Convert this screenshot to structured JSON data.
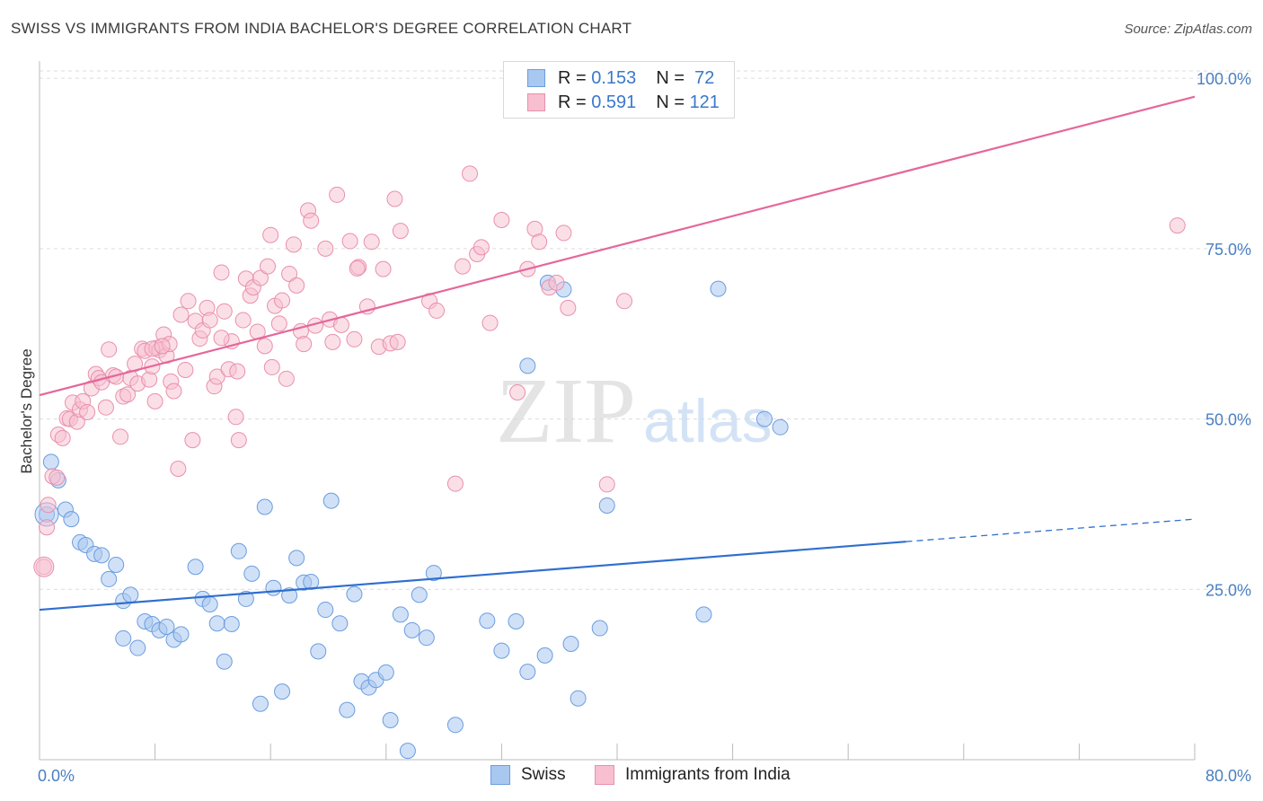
{
  "header": {
    "title": "SWISS VS IMMIGRANTS FROM INDIA BACHELOR'S DEGREE CORRELATION CHART",
    "source": "Source: ZipAtlas.com"
  },
  "watermark": {
    "part1": "ZIP",
    "part2": "atlas"
  },
  "legend": {
    "rows": [
      {
        "r_label": "R =",
        "r_value": "0.153",
        "n_label": "N =",
        "n_value": "72"
      },
      {
        "r_label": "R =",
        "r_value": "0.591",
        "n_label": "N =",
        "n_value": "121"
      }
    ]
  },
  "bottom_legend": {
    "swiss": "Swiss",
    "india": "Immigrants from India"
  },
  "colors": {
    "swiss_fill": "#a9c8f0",
    "swiss_stroke": "#6b9ddf",
    "swiss_line": "#2f6fcf",
    "india_fill": "#f7bfd0",
    "india_stroke": "#e98fae",
    "india_line": "#e5679a",
    "axis_label": "#4a7fc1",
    "grid": "#dcdcdc"
  },
  "chart_data": {
    "type": "scatter",
    "title": "SWISS VS IMMIGRANTS FROM INDIA BACHELOR'S DEGREE CORRELATION CHART",
    "xlabel": "",
    "ylabel": "Bachelor's Degree",
    "xlim": [
      0,
      80
    ],
    "ylim": [
      0,
      102
    ],
    "x_tick_labels": [
      "0.0%",
      "80.0%"
    ],
    "y_ticks": [
      25,
      50,
      75,
      100
    ],
    "y_tick_labels": [
      "25.0%",
      "50.0%",
      "75.0%",
      "100.0%"
    ],
    "grid": true,
    "legend_position": "top-center",
    "series": [
      {
        "name": "Swiss",
        "R": 0.153,
        "N": 72,
        "trend": {
          "x": [
            0,
            60
          ],
          "y": [
            22.0,
            32.0
          ],
          "dashed_extension": {
            "x": [
              60,
              80
            ],
            "y": [
              32.0,
              35.3
            ]
          }
        },
        "points": [
          [
            0.5,
            36.0
          ],
          [
            0.8,
            43.7
          ],
          [
            1.3,
            41.0
          ],
          [
            1.8,
            36.7
          ],
          [
            2.2,
            35.3
          ],
          [
            2.8,
            31.9
          ],
          [
            3.2,
            31.5
          ],
          [
            3.8,
            30.2
          ],
          [
            4.3,
            30.0
          ],
          [
            4.8,
            26.5
          ],
          [
            5.3,
            28.6
          ],
          [
            5.8,
            23.3
          ],
          [
            6.3,
            24.2
          ],
          [
            6.8,
            16.4
          ],
          [
            7.3,
            20.3
          ],
          [
            7.8,
            19.9
          ],
          [
            8.3,
            19.0
          ],
          [
            8.8,
            19.5
          ],
          [
            9.3,
            17.6
          ],
          [
            9.8,
            18.4
          ],
          [
            10.8,
            28.3
          ],
          [
            11.3,
            23.6
          ],
          [
            11.8,
            22.8
          ],
          [
            12.3,
            20.0
          ],
          [
            12.8,
            14.4
          ],
          [
            13.3,
            19.9
          ],
          [
            13.8,
            30.6
          ],
          [
            14.3,
            23.6
          ],
          [
            14.7,
            27.3
          ],
          [
            15.3,
            8.2
          ],
          [
            15.6,
            37.1
          ],
          [
            16.2,
            25.2
          ],
          [
            16.8,
            10.0
          ],
          [
            17.3,
            24.1
          ],
          [
            17.8,
            29.6
          ],
          [
            18.3,
            26.0
          ],
          [
            18.8,
            26.1
          ],
          [
            19.3,
            15.9
          ],
          [
            19.8,
            22.0
          ],
          [
            20.2,
            38.0
          ],
          [
            20.8,
            20.0
          ],
          [
            21.3,
            7.3
          ],
          [
            21.8,
            24.3
          ],
          [
            22.3,
            11.5
          ],
          [
            22.8,
            10.6
          ],
          [
            23.3,
            11.7
          ],
          [
            24.0,
            12.8
          ],
          [
            24.3,
            5.8
          ],
          [
            25.0,
            21.3
          ],
          [
            25.5,
            1.3
          ],
          [
            25.8,
            19.0
          ],
          [
            26.3,
            24.2
          ],
          [
            26.8,
            17.9
          ],
          [
            27.3,
            27.4
          ],
          [
            28.8,
            5.1
          ],
          [
            31.0,
            20.4
          ],
          [
            32.0,
            16.0
          ],
          [
            33.0,
            20.3
          ],
          [
            33.8,
            12.9
          ],
          [
            33.8,
            57.8
          ],
          [
            35.0,
            15.3
          ],
          [
            35.2,
            70.0
          ],
          [
            36.3,
            69.0
          ],
          [
            36.8,
            17.0
          ],
          [
            37.3,
            9.0
          ],
          [
            38.8,
            19.3
          ],
          [
            39.3,
            37.3
          ],
          [
            46.0,
            21.3
          ],
          [
            47.0,
            69.1
          ],
          [
            50.2,
            50.0
          ],
          [
            51.3,
            48.8
          ],
          [
            5.8,
            17.8
          ]
        ]
      },
      {
        "name": "Immigrants from India",
        "R": 0.591,
        "N": 121,
        "trend": {
          "x": [
            0,
            80
          ],
          "y": [
            53.5,
            97.3
          ]
        },
        "points": [
          [
            0.3,
            28.3
          ],
          [
            0.5,
            34.1
          ],
          [
            0.6,
            37.4
          ],
          [
            0.9,
            41.6
          ],
          [
            1.2,
            41.4
          ],
          [
            1.3,
            47.7
          ],
          [
            1.6,
            47.2
          ],
          [
            1.9,
            50.1
          ],
          [
            2.1,
            50.0
          ],
          [
            2.3,
            52.4
          ],
          [
            2.6,
            49.6
          ],
          [
            2.8,
            51.4
          ],
          [
            3.0,
            52.6
          ],
          [
            3.3,
            51.0
          ],
          [
            3.6,
            54.5
          ],
          [
            3.9,
            56.6
          ],
          [
            4.1,
            56.0
          ],
          [
            4.3,
            55.4
          ],
          [
            4.6,
            51.7
          ],
          [
            4.8,
            60.2
          ],
          [
            5.1,
            56.4
          ],
          [
            5.3,
            56.2
          ],
          [
            5.6,
            47.4
          ],
          [
            5.8,
            53.3
          ],
          [
            6.1,
            53.6
          ],
          [
            6.3,
            56.0
          ],
          [
            6.6,
            58.1
          ],
          [
            6.8,
            55.2
          ],
          [
            7.1,
            60.3
          ],
          [
            7.3,
            60.0
          ],
          [
            7.6,
            55.8
          ],
          [
            7.8,
            57.7
          ],
          [
            8.0,
            52.6
          ],
          [
            8.1,
            60.4
          ],
          [
            8.3,
            60.1
          ],
          [
            8.6,
            62.4
          ],
          [
            8.8,
            59.3
          ],
          [
            9.1,
            55.5
          ],
          [
            9.3,
            54.1
          ],
          [
            9.6,
            42.7
          ],
          [
            9.8,
            65.3
          ],
          [
            10.1,
            57.2
          ],
          [
            10.3,
            67.3
          ],
          [
            10.6,
            46.9
          ],
          [
            10.8,
            64.4
          ],
          [
            11.1,
            61.8
          ],
          [
            11.3,
            63.0
          ],
          [
            11.6,
            66.3
          ],
          [
            11.8,
            64.5
          ],
          [
            12.1,
            54.8
          ],
          [
            12.3,
            56.2
          ],
          [
            12.6,
            71.5
          ],
          [
            12.8,
            65.8
          ],
          [
            13.1,
            57.3
          ],
          [
            13.3,
            61.4
          ],
          [
            13.6,
            50.3
          ],
          [
            13.8,
            46.9
          ],
          [
            14.1,
            64.5
          ],
          [
            14.3,
            70.6
          ],
          [
            14.6,
            68.1
          ],
          [
            14.8,
            69.3
          ],
          [
            15.1,
            62.8
          ],
          [
            15.3,
            70.7
          ],
          [
            15.6,
            60.7
          ],
          [
            15.8,
            72.4
          ],
          [
            16.1,
            57.6
          ],
          [
            16.3,
            66.6
          ],
          [
            16.6,
            64.0
          ],
          [
            16.8,
            67.4
          ],
          [
            17.1,
            55.9
          ],
          [
            17.3,
            71.3
          ],
          [
            17.6,
            75.6
          ],
          [
            17.8,
            69.6
          ],
          [
            18.1,
            62.9
          ],
          [
            18.3,
            61.0
          ],
          [
            18.6,
            80.6
          ],
          [
            18.8,
            79.1
          ],
          [
            19.1,
            63.7
          ],
          [
            19.8,
            75.0
          ],
          [
            20.1,
            64.6
          ],
          [
            20.3,
            61.3
          ],
          [
            20.6,
            82.9
          ],
          [
            20.9,
            63.8
          ],
          [
            21.5,
            76.1
          ],
          [
            21.8,
            61.7
          ],
          [
            22.1,
            72.3
          ],
          [
            22.7,
            66.5
          ],
          [
            23.0,
            76.0
          ],
          [
            23.5,
            60.6
          ],
          [
            23.8,
            72.0
          ],
          [
            24.3,
            61.1
          ],
          [
            24.6,
            82.3
          ],
          [
            25.0,
            77.6
          ],
          [
            27.0,
            67.3
          ],
          [
            27.5,
            65.9
          ],
          [
            28.8,
            40.5
          ],
          [
            29.3,
            72.4
          ],
          [
            29.8,
            86.0
          ],
          [
            30.3,
            74.2
          ],
          [
            30.6,
            75.2
          ],
          [
            31.2,
            64.1
          ],
          [
            32.0,
            79.2
          ],
          [
            33.1,
            53.9
          ],
          [
            33.8,
            72.0
          ],
          [
            34.3,
            77.9
          ],
          [
            34.6,
            76.0
          ],
          [
            35.3,
            69.3
          ],
          [
            35.8,
            70.0
          ],
          [
            36.3,
            77.3
          ],
          [
            36.6,
            66.3
          ],
          [
            39.3,
            40.4
          ],
          [
            40.5,
            67.3
          ],
          [
            78.8,
            78.4
          ],
          [
            12.6,
            61.9
          ],
          [
            22.0,
            72.1
          ],
          [
            7.8,
            60.3
          ],
          [
            9.0,
            61.0
          ],
          [
            8.5,
            60.7
          ],
          [
            16.0,
            77.0
          ],
          [
            24.8,
            61.3
          ],
          [
            13.7,
            57.0
          ]
        ]
      }
    ]
  }
}
